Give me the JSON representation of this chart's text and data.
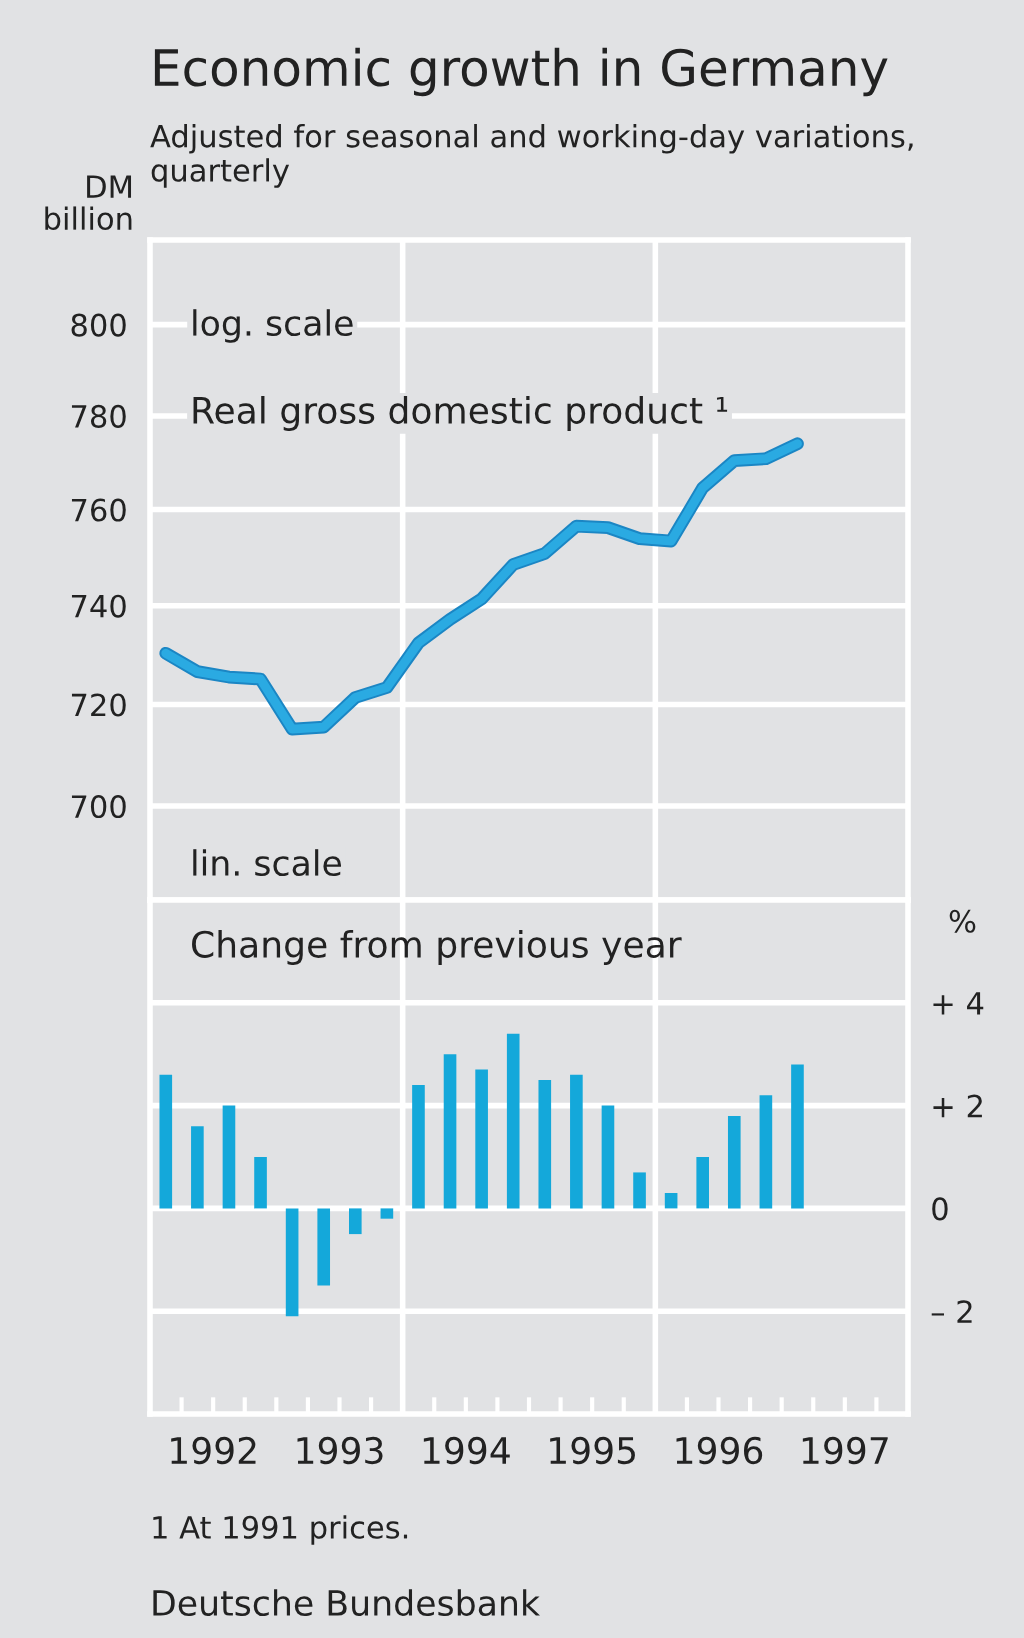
{
  "chart_data": [
    {
      "type": "line",
      "title": "Economic growth in Germany",
      "subtitle": "Adjusted for seasonal and working-day variations, quarterly",
      "ylabel": "DM billion",
      "log": "y",
      "annotations": [
        "log. scale"
      ],
      "series": [
        {
          "name": "Real gross domestic product ¹",
          "color": "#2aaae2",
          "x": [
            1992.125,
            1992.375,
            1992.625,
            1992.875,
            1993.125,
            1993.375,
            1993.625,
            1993.875,
            1994.125,
            1994.375,
            1994.625,
            1994.875,
            1995.125,
            1995.375,
            1995.625,
            1995.875,
            1996.125,
            1996.375,
            1996.625,
            1996.875,
            1997.125
          ],
          "values": [
            730.3,
            726.6,
            725.5,
            725.1,
            715.1,
            715.5,
            721.4,
            723.4,
            732.4,
            737.2,
            741.4,
            748.5,
            750.8,
            756.5,
            756.2,
            753.9,
            753.4,
            764.6,
            770.4,
            770.8,
            774.0
          ]
        }
      ],
      "xlim": [
        1992,
        1998
      ],
      "ylim": [
        682,
        819
      ],
      "yticks": [
        700,
        720,
        740,
        760,
        780,
        800
      ],
      "ref_lines": [
        {
          "axis": "x",
          "value": 1994,
          "color": "#ffffff"
        },
        {
          "axis": "x",
          "value": 1996,
          "color": "#ffffff"
        }
      ],
      "grid": "y",
      "legend": false,
      "tick_labels": "y",
      "line_style": "solid",
      "marker": "none"
    },
    {
      "type": "bar",
      "ylabel": "%",
      "annotations": [
        "lin. scale",
        "1 At 1991 prices.",
        "Deutsche Bundesbank"
      ],
      "series": [
        {
          "name": "Change from previous year",
          "color": "#14a8da",
          "x": [
            1992.125,
            1992.375,
            1992.625,
            1992.875,
            1993.125,
            1993.375,
            1993.625,
            1993.875,
            1994.125,
            1994.375,
            1994.625,
            1994.875,
            1995.125,
            1995.375,
            1995.625,
            1995.875,
            1996.125,
            1996.375,
            1996.625,
            1996.875,
            1997.125
          ],
          "values": [
            2.6,
            1.6,
            2.0,
            1.0,
            -2.1,
            -1.5,
            -0.5,
            -0.2,
            2.4,
            3.0,
            2.7,
            3.4,
            2.5,
            2.6,
            2.0,
            0.7,
            0.3,
            1.0,
            1.8,
            2.2,
            2.8
          ]
        }
      ],
      "xlim": [
        1992,
        1998
      ],
      "ylim": [
        -4,
        6
      ],
      "xticks": [
        {
          "value": 1992.25,
          "label": null
        },
        {
          "value": 1992.5,
          "label": "1992"
        },
        {
          "value": 1992.75,
          "label": null
        },
        {
          "value": 1993,
          "label": null
        },
        {
          "value": 1993.25,
          "label": null
        },
        {
          "value": 1993.5,
          "label": "1993"
        },
        {
          "value": 1993.75,
          "label": null
        },
        {
          "value": 1994,
          "label": null
        },
        {
          "value": 1994.25,
          "label": null
        },
        {
          "value": 1994.5,
          "label": "1994"
        },
        {
          "value": 1994.75,
          "label": null
        },
        {
          "value": 1995,
          "label": null
        },
        {
          "value": 1995.25,
          "label": null
        },
        {
          "value": 1995.5,
          "label": "1995"
        },
        {
          "value": 1995.75,
          "label": null
        },
        {
          "value": 1996,
          "label": null
        },
        {
          "value": 1996.25,
          "label": null
        },
        {
          "value": 1996.5,
          "label": "1996"
        },
        {
          "value": 1996.75,
          "label": null
        },
        {
          "value": 1997,
          "label": null
        },
        {
          "value": 1997.25,
          "label": null
        },
        {
          "value": 1997.5,
          "label": "1997"
        },
        {
          "value": 1997.75,
          "label": null
        }
      ],
      "yticks": [
        {
          "value": 4,
          "label": "+ 4"
        },
        {
          "value": 2,
          "label": "+ 2"
        },
        0,
        {
          "value": -2,
          "label": "– 2"
        }
      ],
      "ref_lines": [
        {
          "axis": "x",
          "value": 1994,
          "color": "#ffffff"
        },
        {
          "axis": "x",
          "value": 1996,
          "color": "#ffffff"
        }
      ],
      "grid": "y",
      "legend": false
    }
  ]
}
